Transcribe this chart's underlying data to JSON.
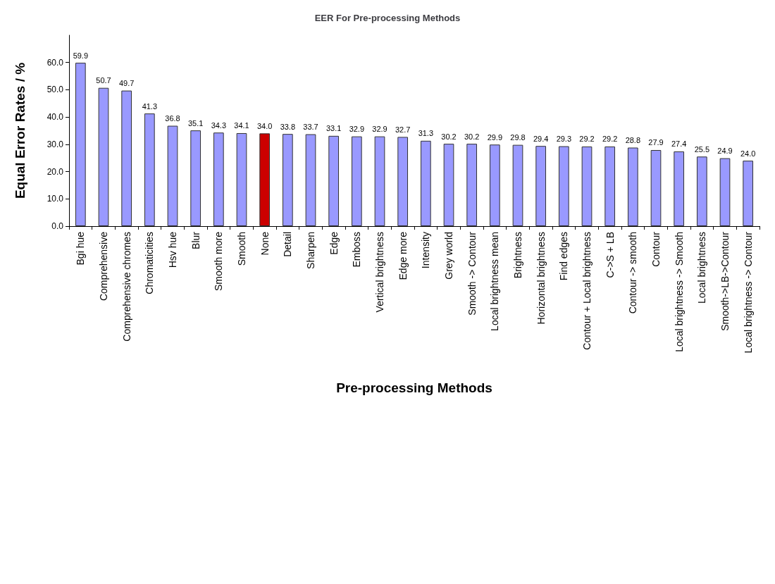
{
  "chart_data": {
    "type": "bar",
    "title": "EER For Pre-processing Methods",
    "xlabel": "Pre-processing Methods",
    "ylabel": "Equal Error Rates / %",
    "categories": [
      "Bgi hue",
      "Comprehensive",
      "Comprehensive chromes",
      "Chromaticities",
      "Hsv hue",
      "Blur",
      "Smooth more",
      "Smooth",
      "None",
      "Detail",
      "Sharpen",
      "Edge",
      "Emboss",
      "Vertical brightness",
      "Edge more",
      "Intensity",
      "Grey world",
      "Smooth -> Contour",
      "Local brightness mean",
      "Brightness",
      "Horizontal brightness",
      "Find edges",
      "Contour + Local brightness",
      "C->S + LB",
      "Contour -> smooth",
      "Contour",
      "Local brightness -> Smooth",
      "Local brightness",
      "Smooth->LB->Contour",
      "Local brightness -> Contour"
    ],
    "values": [
      59.9,
      50.7,
      49.7,
      41.3,
      36.8,
      35.1,
      34.3,
      34.1,
      34.0,
      33.8,
      33.7,
      33.1,
      32.9,
      32.9,
      32.7,
      31.3,
      30.2,
      30.2,
      29.9,
      29.8,
      29.4,
      29.3,
      29.2,
      29.2,
      28.8,
      27.9,
      27.4,
      25.5,
      24.9,
      24.0
    ],
    "value_labels": [
      "59.9",
      "50.7",
      "49.7",
      "41.3",
      "36.8",
      "35.1",
      "34.3",
      "34.1",
      "34.0",
      "33.8",
      "33.7",
      "33.1",
      "32.9",
      "32.9",
      "32.7",
      "31.3",
      "30.2",
      "30.2",
      "29.9",
      "29.8",
      "29.4",
      "29.3",
      "29.2",
      "29.2",
      "28.8",
      "27.9",
      "27.4",
      "25.5",
      "24.9",
      "24.0"
    ],
    "colors": [
      "#9999ff",
      "#9999ff",
      "#9999ff",
      "#9999ff",
      "#9999ff",
      "#9999ff",
      "#9999ff",
      "#9999ff",
      "#cc0000",
      "#9999ff",
      "#9999ff",
      "#9999ff",
      "#9999ff",
      "#9999ff",
      "#9999ff",
      "#9999ff",
      "#9999ff",
      "#9999ff",
      "#9999ff",
      "#9999ff",
      "#9999ff",
      "#9999ff",
      "#9999ff",
      "#9999ff",
      "#9999ff",
      "#9999ff",
      "#9999ff",
      "#9999ff",
      "#9999ff",
      "#9999ff"
    ],
    "ylim": [
      0,
      70
    ],
    "yticks": [
      {
        "value": 0,
        "label": "0.0"
      },
      {
        "value": 10,
        "label": "10.0"
      },
      {
        "value": 20,
        "label": "20.0"
      },
      {
        "value": 30,
        "label": "30.0"
      },
      {
        "value": 40,
        "label": "40.0"
      },
      {
        "value": 50,
        "label": "50.0"
      },
      {
        "value": 60,
        "label": "60.0"
      }
    ],
    "grid": false
  }
}
